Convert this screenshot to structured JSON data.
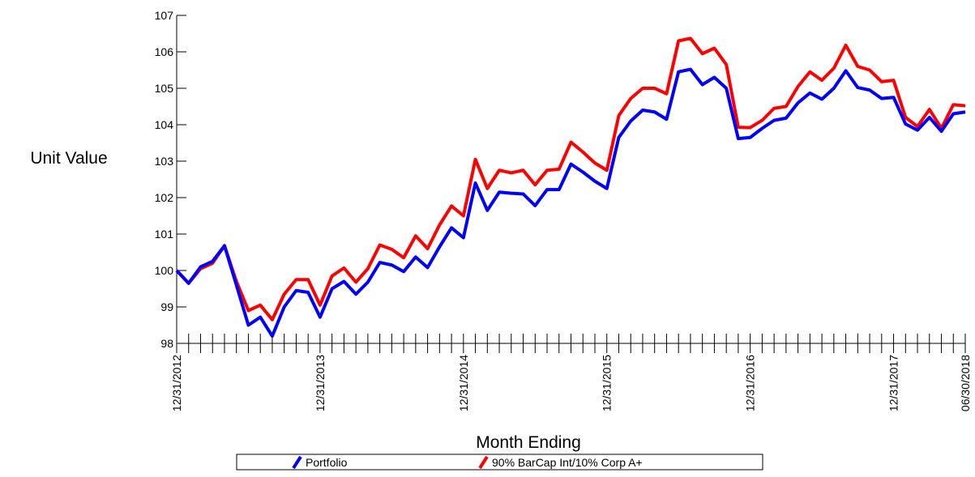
{
  "chart_data": {
    "type": "line",
    "ylabel": "Unit Value",
    "xlabel": "Month Ending",
    "categories": [
      "12/31/2012",
      null,
      null,
      null,
      null,
      null,
      null,
      null,
      null,
      null,
      null,
      null,
      "12/31/2013",
      null,
      null,
      null,
      null,
      null,
      null,
      null,
      null,
      null,
      null,
      null,
      "12/31/2014",
      null,
      null,
      null,
      null,
      null,
      null,
      null,
      null,
      null,
      null,
      null,
      "12/31/2015",
      null,
      null,
      null,
      null,
      null,
      null,
      null,
      null,
      null,
      null,
      null,
      "12/31/2016",
      null,
      null,
      null,
      null,
      null,
      null,
      null,
      null,
      null,
      null,
      null,
      "12/31/2017",
      null,
      null,
      null,
      null,
      null,
      "06/30/2018"
    ],
    "series": [
      {
        "name": "Portfolio",
        "color": "#0000ff",
        "values": [
          100,
          99.65,
          100.1,
          100.25,
          100.68,
          99.6,
          98.5,
          98.72,
          98.2,
          99.0,
          99.45,
          99.4,
          98.72,
          99.5,
          99.7,
          99.35,
          99.68,
          100.22,
          100.15,
          99.97,
          100.37,
          100.08,
          100.65,
          101.17,
          100.9,
          102.4,
          101.65,
          102.15,
          102.12,
          102.1,
          101.78,
          102.22,
          102.22,
          102.92,
          102.7,
          102.45,
          102.25,
          103.65,
          104.1,
          104.4,
          104.35,
          104.15,
          105.45,
          105.52,
          105.1,
          105.3,
          105.0,
          103.62,
          103.65,
          103.9,
          104.12,
          104.18,
          104.6,
          104.87,
          104.7,
          105.0,
          105.48,
          105.02,
          104.95,
          104.72,
          104.75,
          104.02,
          103.85,
          104.2,
          103.82,
          104.3,
          104.35
        ]
      },
      {
        "name": "90% BarCap Int/10% Corp A+",
        "color": "#ff0000",
        "values": [
          100,
          99.65,
          100.05,
          100.2,
          100.68,
          99.7,
          98.9,
          99.05,
          98.65,
          99.35,
          99.75,
          99.75,
          99.05,
          99.85,
          100.07,
          99.68,
          100.05,
          100.7,
          100.58,
          100.35,
          100.95,
          100.6,
          101.25,
          101.77,
          101.5,
          103.05,
          102.25,
          102.75,
          102.68,
          102.75,
          102.35,
          102.75,
          102.78,
          103.52,
          103.25,
          102.95,
          102.75,
          104.25,
          104.72,
          105.0,
          105.0,
          104.85,
          106.3,
          106.37,
          105.95,
          106.1,
          105.65,
          103.93,
          103.92,
          104.12,
          104.45,
          104.5,
          105.05,
          105.45,
          105.22,
          105.55,
          106.18,
          105.6,
          105.5,
          105.18,
          105.22,
          104.2,
          103.95,
          104.42,
          103.9,
          104.55,
          104.52
        ]
      }
    ],
    "ylim": [
      98,
      107
    ],
    "yticks": [
      98,
      99,
      100,
      101,
      102,
      103,
      104,
      105,
      106,
      107
    ]
  }
}
